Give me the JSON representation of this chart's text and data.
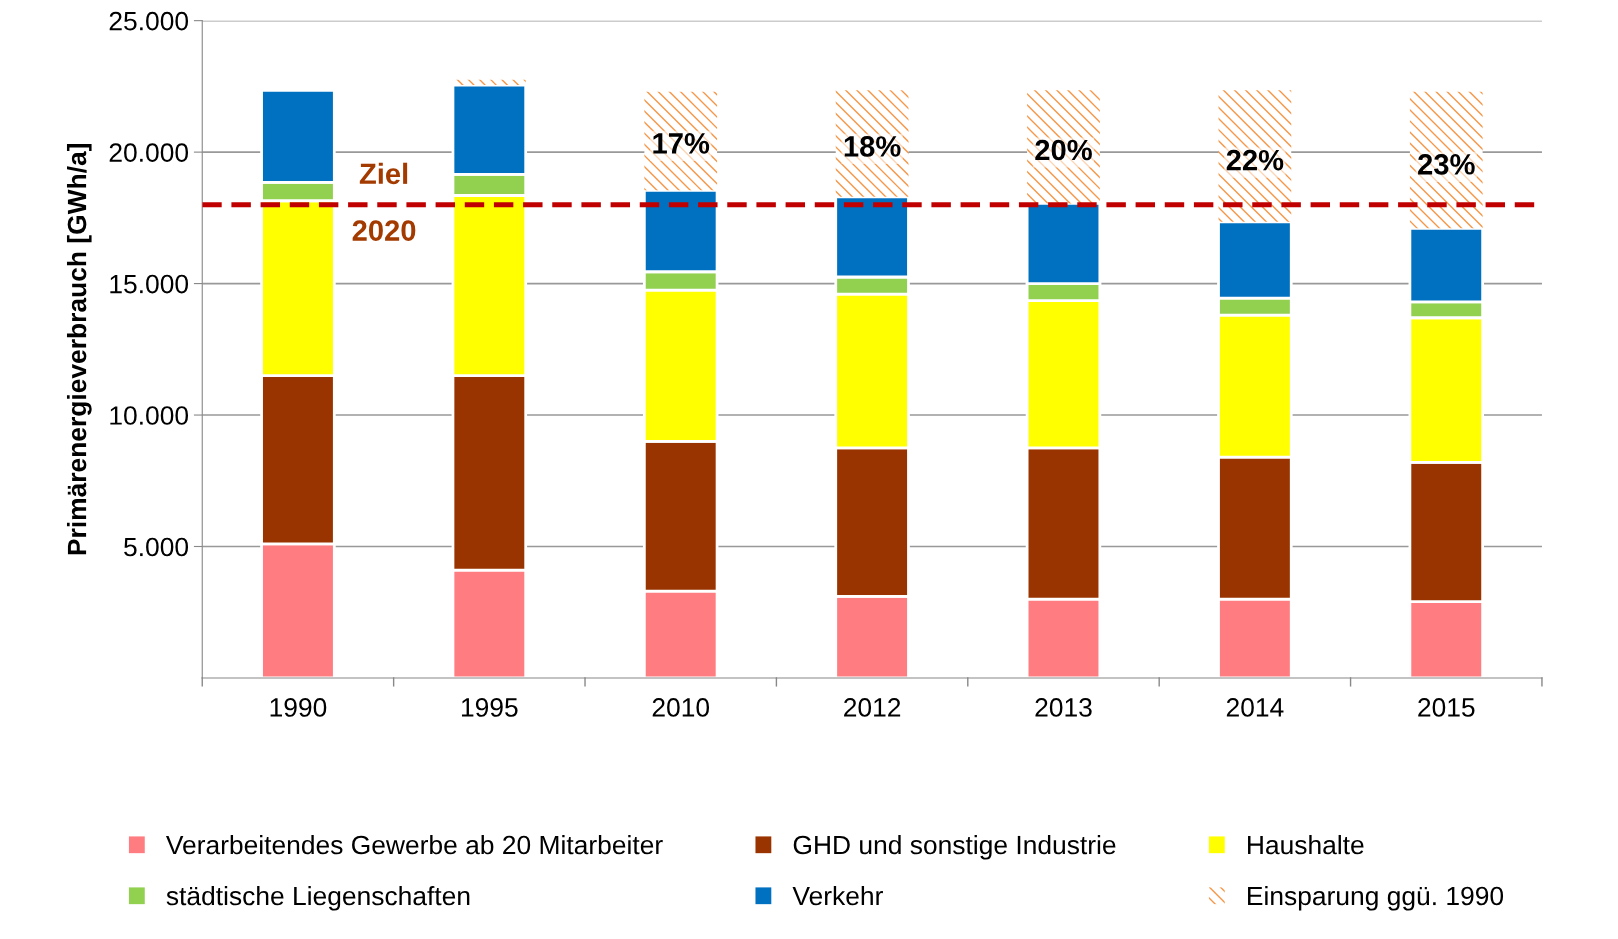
{
  "chart_data": {
    "type": "bar",
    "stacked": true,
    "ylabel": "Primärenergieverbrauch [GWh/a]",
    "categories": [
      "1990",
      "1995",
      "2010",
      "2012",
      "2013",
      "2014",
      "2015"
    ],
    "series": [
      {
        "name": "Verarbeitendes Gewerbe ab 20 Mitarbeiter",
        "color": "#ff7c80",
        "values": [
          5100,
          4100,
          3300,
          3100,
          3000,
          3000,
          2900
        ]
      },
      {
        "name": "GHD und sonstige Industrie",
        "color": "#993300",
        "values": [
          6400,
          7400,
          5700,
          5650,
          5750,
          5400,
          5300
        ]
      },
      {
        "name": "Haushalte",
        "color": "#ffff00",
        "values": [
          6650,
          6850,
          5750,
          5850,
          5600,
          5400,
          5500
        ]
      },
      {
        "name": "städtische Liegenschaften",
        "color": "#92d050",
        "values": [
          700,
          800,
          700,
          650,
          650,
          650,
          600
        ]
      },
      {
        "name": "Verkehr",
        "color": "#0070c0",
        "values": [
          3500,
          3400,
          3100,
          3050,
          3050,
          2900,
          2800
        ]
      },
      {
        "name": "Einsparung ggü. 1990",
        "color": "#f79646",
        "values": [
          null,
          200,
          3750,
          4050,
          4300,
          5000,
          5200
        ]
      }
    ],
    "annotations": [
      "17%",
      "18%",
      "20%",
      "22%",
      "23%"
    ],
    "ylim": [
      0,
      25000
    ],
    "yticks": [
      {
        "value": 5000,
        "label": "5.000"
      },
      {
        "value": 10000,
        "label": "10.000"
      },
      {
        "value": 15000,
        "label": "15.000"
      },
      {
        "value": 20000,
        "label": "20.000"
      },
      {
        "value": 25000,
        "label": "25.000"
      }
    ],
    "grid": "y",
    "legend": "bottom",
    "ref_lines": [
      {
        "axis": "y",
        "value": 18000,
        "label": "Ziel\n2020",
        "color": "#c00000",
        "line_style": "dashed"
      }
    ]
  }
}
